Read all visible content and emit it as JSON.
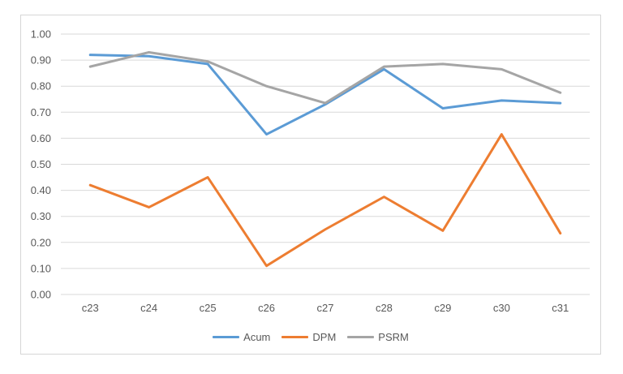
{
  "chart_data": {
    "type": "line",
    "title": "",
    "xlabel": "",
    "ylabel": "",
    "categories": [
      "c23",
      "c24",
      "c25",
      "c26",
      "c27",
      "c28",
      "c29",
      "c30",
      "c31"
    ],
    "series": [
      {
        "name": "Acum",
        "color": "#5B9BD5",
        "values": [
          0.92,
          0.915,
          0.885,
          0.615,
          0.73,
          0.865,
          0.715,
          0.745,
          0.735
        ]
      },
      {
        "name": "DPM",
        "color": "#ED7D31",
        "values": [
          0.42,
          0.335,
          0.45,
          0.11,
          0.25,
          0.375,
          0.245,
          0.615,
          0.235
        ]
      },
      {
        "name": "PSRM",
        "color": "#A5A5A5",
        "values": [
          0.875,
          0.93,
          0.895,
          0.8,
          0.735,
          0.875,
          0.885,
          0.865,
          0.775
        ]
      }
    ],
    "ylim": [
      0,
      1
    ],
    "ytick_step": 0.1,
    "ytick_labels": [
      "1.00",
      "0.90",
      "0.80",
      "0.70",
      "0.60",
      "0.50",
      "0.40",
      "0.30",
      "0.20",
      "0.10",
      "0.00"
    ],
    "grid": "horizontal-only",
    "legend_position": "bottom",
    "colors": {
      "gridline": "#D9D9D9",
      "axis_text": "#595959",
      "frame_border": "#D6D6D6",
      "background": "#FFFFFF"
    }
  }
}
